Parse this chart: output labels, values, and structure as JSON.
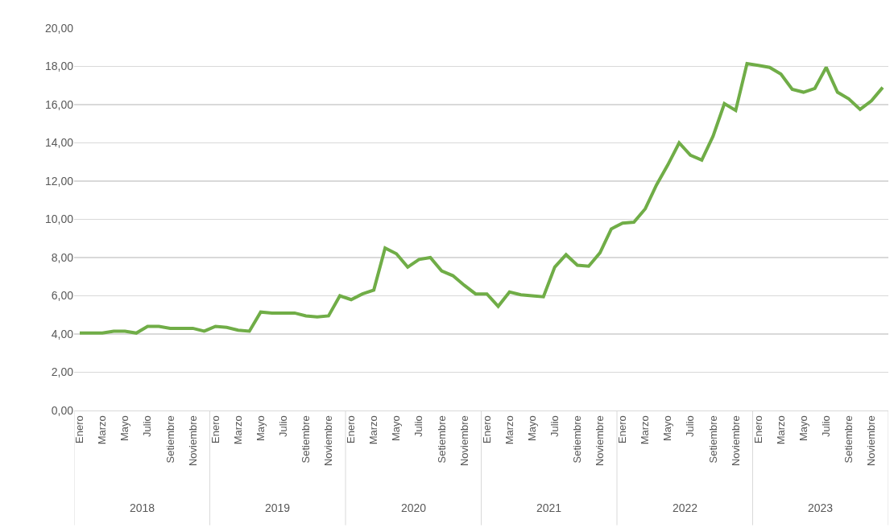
{
  "chart_data": {
    "type": "line",
    "categories": [
      "Enero",
      null,
      "Marzo",
      null,
      "Mayo",
      null,
      "Julio",
      null,
      "Setiembre",
      null,
      "Noviembre",
      null,
      "Enero",
      null,
      "Marzo",
      null,
      "Mayo",
      null,
      "Julio",
      null,
      "Setiembre",
      null,
      "Noviembre",
      null,
      "Enero",
      null,
      "Marzo",
      null,
      "Mayo",
      null,
      "Julio",
      null,
      "Setiembre",
      null,
      "Noviembre",
      null,
      "Enero",
      null,
      "Marzo",
      null,
      "Mayo",
      null,
      "Julio",
      null,
      "Setiembre",
      null,
      "Noviembre",
      null,
      "Enero",
      null,
      "Marzo",
      null,
      "Mayo",
      null,
      "Julio",
      null,
      "Setiembre",
      null,
      "Noviembre",
      null,
      "Enero",
      null,
      "Marzo",
      null,
      "Mayo",
      null,
      "Julio",
      null,
      "Setiembre",
      null,
      "Noviembre",
      null
    ],
    "series": [
      {
        "color": "#70ad47",
        "values": [
          4.05,
          4.05,
          4.05,
          4.15,
          4.15,
          4.05,
          4.4,
          4.4,
          4.3,
          4.3,
          4.3,
          4.15,
          4.4,
          4.35,
          4.2,
          4.15,
          5.15,
          5.1,
          5.1,
          5.1,
          4.95,
          4.9,
          4.95,
          6.0,
          5.8,
          6.1,
          6.3,
          8.5,
          8.2,
          7.5,
          7.9,
          8.0,
          7.3,
          7.05,
          6.55,
          6.1,
          6.1,
          5.45,
          6.2,
          6.05,
          6.0,
          5.95,
          7.5,
          8.15,
          7.6,
          7.55,
          8.25,
          9.5,
          9.8,
          9.85,
          10.55,
          11.8,
          12.85,
          14.0,
          13.35,
          13.1,
          14.35,
          16.05,
          15.7,
          18.15,
          18.05,
          17.95,
          17.6,
          16.8,
          16.65,
          16.85,
          17.95,
          16.65,
          16.3,
          15.75,
          16.2,
          16.9
        ]
      }
    ],
    "annotations": [
      "2018",
      "2019",
      "2020",
      "2021",
      "2022",
      "2023"
    ],
    "ylim": [
      0,
      20
    ],
    "yticks": [
      {
        "value": 0,
        "label": "0,00"
      },
      {
        "value": 2,
        "label": "2,00"
      },
      {
        "value": 4,
        "label": "4,00"
      },
      {
        "value": 6,
        "label": "6,00"
      },
      {
        "value": 8,
        "label": "8,00"
      },
      {
        "value": 10,
        "label": "10,00"
      },
      {
        "value": 12,
        "label": "12,00"
      },
      {
        "value": 14,
        "label": "14,00"
      },
      {
        "value": 16,
        "label": "16,00"
      },
      {
        "value": 18,
        "label": "18,00"
      },
      {
        "value": 20,
        "label": "20,00"
      }
    ],
    "grid": "y",
    "marker": "none",
    "line_style": "solid"
  }
}
